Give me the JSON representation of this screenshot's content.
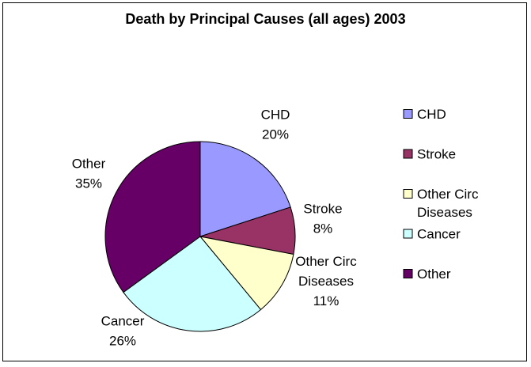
{
  "chart_data": {
    "type": "pie",
    "title": "Death by Principal Causes (all ages) 2003",
    "categories": [
      "CHD",
      "Stroke",
      "Other Circ Diseases",
      "Cancer",
      "Other"
    ],
    "values": [
      20,
      8,
      11,
      26,
      35
    ],
    "value_labels": [
      "20%",
      "8%",
      "11%",
      "26%",
      "35%"
    ],
    "slice_label_lines": [
      [
        "CHD"
      ],
      [
        "Stroke"
      ],
      [
        "Other Circ",
        "Diseases"
      ],
      [
        "Cancer"
      ],
      [
        "Other"
      ]
    ],
    "legend_lines": [
      [
        "CHD"
      ],
      [
        "Stroke"
      ],
      [
        "Other Circ",
        "Diseases"
      ],
      [
        "Cancer"
      ],
      [
        "Other"
      ]
    ],
    "colors": [
      "#9999ff",
      "#993366",
      "#ffffcc",
      "#ccffff",
      "#660066"
    ],
    "legend": "right",
    "start": "12 o'clock",
    "direction": "clockwise"
  }
}
